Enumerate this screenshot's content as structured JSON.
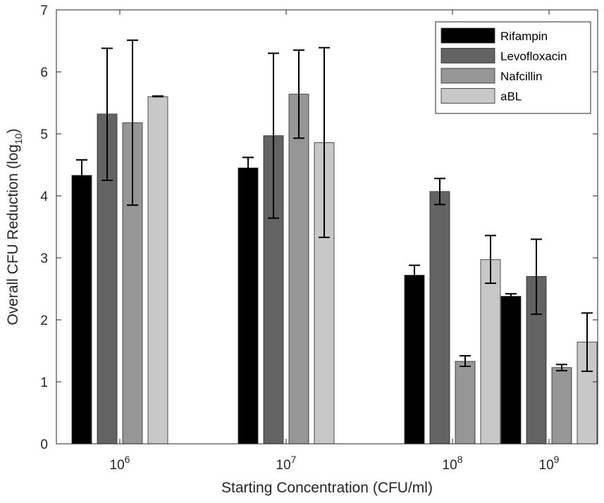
{
  "chart_data": {
    "type": "bar",
    "title": "",
    "xlabel": "Starting Concentration (CFU/ml)",
    "ylabel": "Overall CFU Reduction (log",
    "ylabel_subscript": "10",
    "ylabel_suffix": ")",
    "ylim": [
      0,
      7
    ],
    "yticks": [
      "0",
      "1",
      "2",
      "3",
      "4",
      "5",
      "6",
      "7"
    ],
    "categories": [
      {
        "base": "10",
        "exp": "6"
      },
      {
        "base": "10",
        "exp": "7"
      },
      {
        "base": "10",
        "exp": "8"
      },
      {
        "base": "10",
        "exp": "9"
      }
    ],
    "legend_position": "top-right",
    "grid": false,
    "series": [
      {
        "name": "Rifampin",
        "color": "#000000",
        "values": [
          4.33,
          4.45,
          2.72,
          2.38
        ],
        "err_low": [
          4.07,
          4.28,
          2.55,
          2.35
        ],
        "err_high": [
          4.58,
          4.62,
          2.88,
          2.42
        ]
      },
      {
        "name": "Levofloxacin",
        "color": "#636363",
        "values": [
          5.32,
          4.97,
          4.07,
          2.7
        ],
        "err_low": [
          4.25,
          3.64,
          3.86,
          2.09
        ],
        "err_high": [
          6.38,
          6.3,
          4.28,
          3.3
        ]
      },
      {
        "name": "Nafcillin",
        "color": "#969696",
        "values": [
          5.18,
          5.64,
          1.33,
          1.23
        ],
        "err_low": [
          3.85,
          4.93,
          1.25,
          1.18
        ],
        "err_high": [
          6.51,
          6.35,
          1.42,
          1.28
        ]
      },
      {
        "name": "aBL",
        "color": "#c8c8c8",
        "values": [
          5.6,
          4.86,
          2.97,
          1.64
        ],
        "err_low": [
          5.6,
          3.33,
          2.59,
          1.17
        ],
        "err_high": [
          5.61,
          6.39,
          3.36,
          2.11
        ]
      }
    ]
  }
}
